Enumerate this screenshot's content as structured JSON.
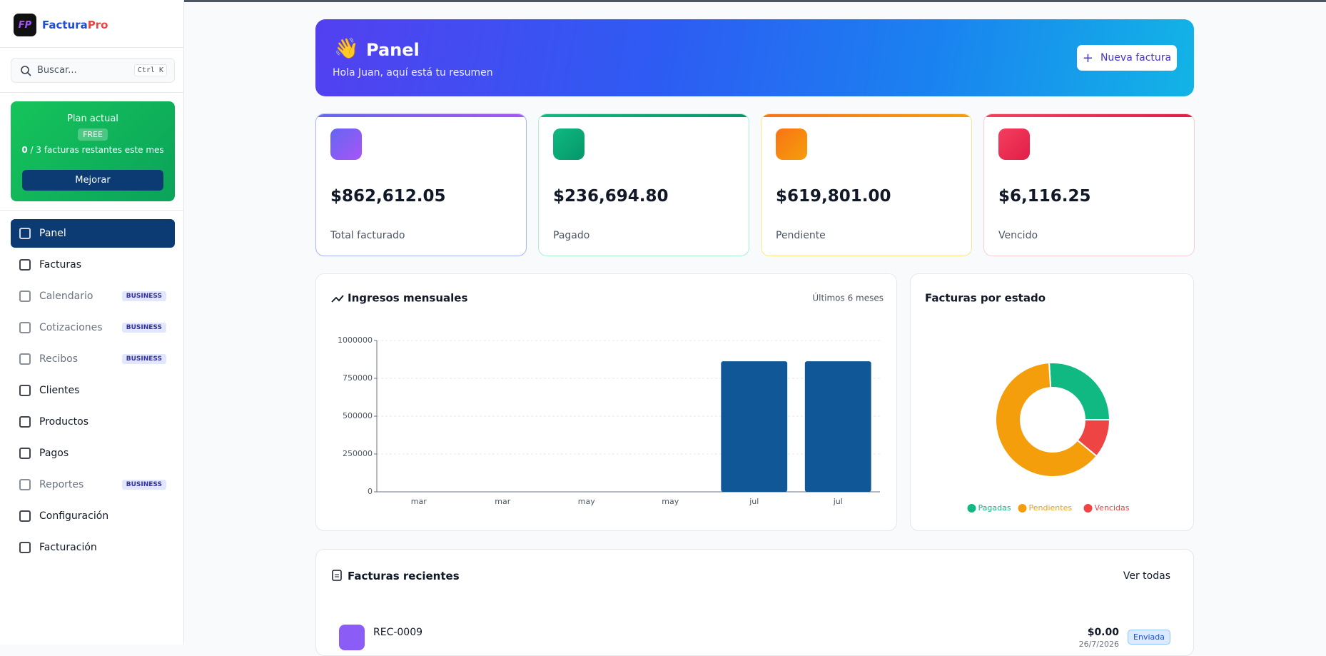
{
  "brand": {
    "name": "Factura",
    "accent": "Pro",
    "logo": "FP"
  },
  "search": {
    "placeholder": "Buscar...",
    "shortcut": "Ctrl K"
  },
  "plan": {
    "title": "Plan actual",
    "badge": "FREE",
    "used": "0",
    "rest": "/ 3 facturas restantes este mes",
    "button": "Mejorar"
  },
  "nav": [
    {
      "label": "Panel",
      "active": true
    },
    {
      "label": "Facturas"
    },
    {
      "label": "Calendario",
      "badge": "BUSINESS"
    },
    {
      "label": "Cotizaciones",
      "badge": "BUSINESS"
    },
    {
      "label": "Recibos",
      "badge": "BUSINESS"
    },
    {
      "label": "Clientes"
    },
    {
      "label": "Productos"
    },
    {
      "label": "Pagos"
    },
    {
      "label": "Reportes",
      "badge": "BUSINESS"
    },
    {
      "label": "Configuración"
    },
    {
      "label": "Facturación"
    }
  ],
  "header": {
    "title": "Panel",
    "subtitle": "Hola Juan, aquí está tu resumen",
    "button": "Nueva factura"
  },
  "stats": [
    {
      "value": "$862,612.05",
      "label": "Total facturado"
    },
    {
      "value": "$236,694.80",
      "label": "Pagado"
    },
    {
      "value": "$619,801.00",
      "label": "Pendiente"
    },
    {
      "value": "$6,116.25",
      "label": "Vencido"
    }
  ],
  "chart_data": [
    {
      "type": "bar",
      "title": "Ingresos mensuales",
      "subtitle": "Últimos 6 meses",
      "categories": [
        "mar",
        "mar",
        "may",
        "may",
        "jul",
        "jul"
      ],
      "values": [
        0,
        0,
        0,
        0,
        862612,
        862612
      ],
      "color": "#0f5796",
      "ylim": [
        0,
        1000000
      ],
      "yticks": [
        0,
        250000,
        500000,
        750000,
        1000000
      ],
      "grid": true
    },
    {
      "type": "pie",
      "title": "Facturas por estado",
      "series": [
        {
          "name": "Pagadas",
          "color": "#10b981",
          "value": 26
        },
        {
          "name": "Pendientes",
          "color": "#f59e0b",
          "value": 63
        },
        {
          "name": "Vencidas",
          "color": "#ef4444",
          "value": 11
        }
      ]
    }
  ],
  "recent": {
    "title": "Facturas recientes",
    "link": "Ver todas",
    "rows": [
      {
        "number": "REC-0009",
        "amount": "$0.00",
        "date": "26/7/2026",
        "status": "Enviada"
      }
    ]
  }
}
